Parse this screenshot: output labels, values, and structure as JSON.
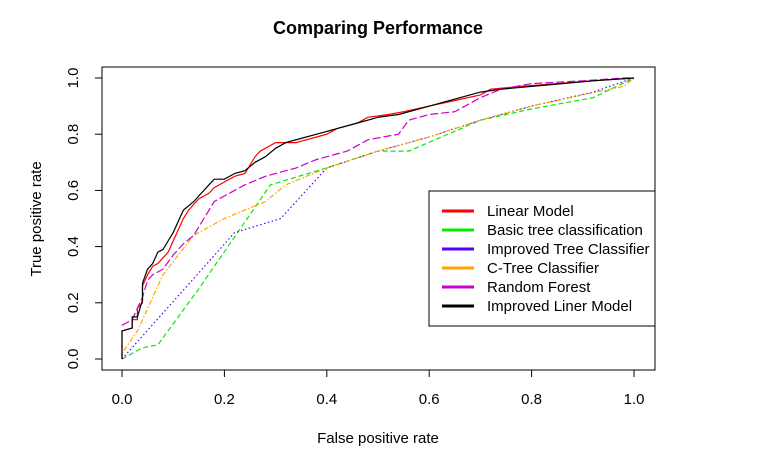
{
  "chart_data": {
    "type": "line",
    "title": "Comparing Performance",
    "xlabel": "False positive rate",
    "ylabel": "True positive rate",
    "xlim": [
      0.0,
      1.0
    ],
    "ylim": [
      0.0,
      1.0
    ],
    "x_ticks": [
      "0.0",
      "0.2",
      "0.4",
      "0.6",
      "0.8",
      "1.0"
    ],
    "y_ticks": [
      "0.0",
      "0.2",
      "0.4",
      "0.6",
      "0.8",
      "1.0"
    ],
    "grid": false,
    "legend_position": "right",
    "series": [
      {
        "name": "Linear Model",
        "color": "#ff0000",
        "style": "solid",
        "points": [
          [
            0.0,
            0.0
          ],
          [
            0.0,
            0.1
          ],
          [
            0.02,
            0.11
          ],
          [
            0.02,
            0.14
          ],
          [
            0.03,
            0.14
          ],
          [
            0.03,
            0.18
          ],
          [
            0.04,
            0.2
          ],
          [
            0.04,
            0.26
          ],
          [
            0.05,
            0.3
          ],
          [
            0.06,
            0.33
          ],
          [
            0.07,
            0.34
          ],
          [
            0.08,
            0.36
          ],
          [
            0.09,
            0.38
          ],
          [
            0.1,
            0.42
          ],
          [
            0.11,
            0.46
          ],
          [
            0.12,
            0.5
          ],
          [
            0.13,
            0.53
          ],
          [
            0.14,
            0.55
          ],
          [
            0.15,
            0.57
          ],
          [
            0.16,
            0.58
          ],
          [
            0.17,
            0.59
          ],
          [
            0.18,
            0.61
          ],
          [
            0.2,
            0.63
          ],
          [
            0.22,
            0.65
          ],
          [
            0.24,
            0.66
          ],
          [
            0.25,
            0.69
          ],
          [
            0.26,
            0.72
          ],
          [
            0.27,
            0.74
          ],
          [
            0.28,
            0.75
          ],
          [
            0.3,
            0.77
          ],
          [
            0.34,
            0.77
          ],
          [
            0.36,
            0.78
          ],
          [
            0.38,
            0.79
          ],
          [
            0.4,
            0.8
          ],
          [
            0.42,
            0.82
          ],
          [
            0.46,
            0.84
          ],
          [
            0.48,
            0.86
          ],
          [
            0.52,
            0.87
          ],
          [
            0.55,
            0.88
          ],
          [
            0.6,
            0.9
          ],
          [
            0.65,
            0.92
          ],
          [
            0.7,
            0.94
          ],
          [
            0.72,
            0.96
          ],
          [
            0.78,
            0.97
          ],
          [
            0.85,
            0.98
          ],
          [
            0.92,
            0.99
          ],
          [
            1.0,
            1.0
          ]
        ]
      },
      {
        "name": "Basic tree classification",
        "color": "#00ee00",
        "style": "dashed",
        "points": [
          [
            0.0,
            0.0
          ],
          [
            0.04,
            0.04
          ],
          [
            0.07,
            0.05
          ],
          [
            0.15,
            0.25
          ],
          [
            0.29,
            0.62
          ],
          [
            0.4,
            0.68
          ],
          [
            0.5,
            0.74
          ],
          [
            0.56,
            0.74
          ],
          [
            0.7,
            0.85
          ],
          [
            0.8,
            0.89
          ],
          [
            0.92,
            0.93
          ],
          [
            1.0,
            1.0
          ]
        ]
      },
      {
        "name": "Improved Tree Classifier",
        "color": "#5500ff",
        "style": "dotted",
        "points": [
          [
            0.0,
            0.0
          ],
          [
            0.22,
            0.45
          ],
          [
            0.31,
            0.5
          ],
          [
            0.36,
            0.6
          ],
          [
            0.4,
            0.68
          ],
          [
            0.5,
            0.74
          ],
          [
            0.6,
            0.79
          ],
          [
            0.7,
            0.85
          ],
          [
            0.8,
            0.9
          ],
          [
            0.92,
            0.95
          ],
          [
            1.0,
            1.0
          ]
        ]
      },
      {
        "name": "C-Tree Classifier",
        "color": "#ffa500",
        "style": "dashdot",
        "points": [
          [
            0.0,
            0.02
          ],
          [
            0.03,
            0.1
          ],
          [
            0.08,
            0.3
          ],
          [
            0.14,
            0.44
          ],
          [
            0.2,
            0.5
          ],
          [
            0.28,
            0.56
          ],
          [
            0.32,
            0.62
          ],
          [
            0.4,
            0.68
          ],
          [
            0.5,
            0.74
          ],
          [
            0.6,
            0.79
          ],
          [
            0.7,
            0.85
          ],
          [
            0.8,
            0.9
          ],
          [
            0.9,
            0.94
          ],
          [
            0.98,
            0.97
          ],
          [
            1.0,
            1.0
          ]
        ]
      },
      {
        "name": "Random Forest",
        "color": "#cc00cc",
        "style": "longdash",
        "points": [
          [
            0.0,
            0.12
          ],
          [
            0.02,
            0.14
          ],
          [
            0.03,
            0.18
          ],
          [
            0.04,
            0.22
          ],
          [
            0.05,
            0.28
          ],
          [
            0.06,
            0.3
          ],
          [
            0.08,
            0.32
          ],
          [
            0.1,
            0.37
          ],
          [
            0.12,
            0.41
          ],
          [
            0.14,
            0.44
          ],
          [
            0.16,
            0.5
          ],
          [
            0.18,
            0.56
          ],
          [
            0.2,
            0.58
          ],
          [
            0.24,
            0.62
          ],
          [
            0.28,
            0.65
          ],
          [
            0.34,
            0.68
          ],
          [
            0.38,
            0.71
          ],
          [
            0.44,
            0.74
          ],
          [
            0.48,
            0.78
          ],
          [
            0.54,
            0.8
          ],
          [
            0.56,
            0.85
          ],
          [
            0.6,
            0.87
          ],
          [
            0.65,
            0.88
          ],
          [
            0.7,
            0.93
          ],
          [
            0.74,
            0.96
          ],
          [
            0.8,
            0.98
          ],
          [
            0.9,
            0.99
          ],
          [
            0.98,
            1.0
          ],
          [
            1.0,
            1.0
          ]
        ]
      },
      {
        "name": "Improved Liner Model",
        "color": "#000000",
        "style": "solid",
        "points": [
          [
            0.0,
            0.0
          ],
          [
            0.0,
            0.1
          ],
          [
            0.02,
            0.11
          ],
          [
            0.02,
            0.15
          ],
          [
            0.03,
            0.15
          ],
          [
            0.04,
            0.21
          ],
          [
            0.04,
            0.27
          ],
          [
            0.05,
            0.32
          ],
          [
            0.06,
            0.34
          ],
          [
            0.07,
            0.38
          ],
          [
            0.08,
            0.39
          ],
          [
            0.09,
            0.42
          ],
          [
            0.1,
            0.45
          ],
          [
            0.11,
            0.49
          ],
          [
            0.12,
            0.53
          ],
          [
            0.14,
            0.56
          ],
          [
            0.16,
            0.6
          ],
          [
            0.17,
            0.62
          ],
          [
            0.18,
            0.64
          ],
          [
            0.2,
            0.64
          ],
          [
            0.22,
            0.66
          ],
          [
            0.24,
            0.67
          ],
          [
            0.26,
            0.7
          ],
          [
            0.28,
            0.72
          ],
          [
            0.3,
            0.75
          ],
          [
            0.32,
            0.77
          ],
          [
            0.36,
            0.79
          ],
          [
            0.38,
            0.8
          ],
          [
            0.4,
            0.81
          ],
          [
            0.42,
            0.82
          ],
          [
            0.46,
            0.84
          ],
          [
            0.5,
            0.86
          ],
          [
            0.54,
            0.87
          ],
          [
            0.58,
            0.89
          ],
          [
            0.62,
            0.91
          ],
          [
            0.66,
            0.93
          ],
          [
            0.7,
            0.95
          ],
          [
            0.74,
            0.96
          ],
          [
            0.8,
            0.97
          ],
          [
            0.86,
            0.98
          ],
          [
            0.92,
            0.99
          ],
          [
            1.0,
            1.0
          ]
        ]
      }
    ]
  }
}
